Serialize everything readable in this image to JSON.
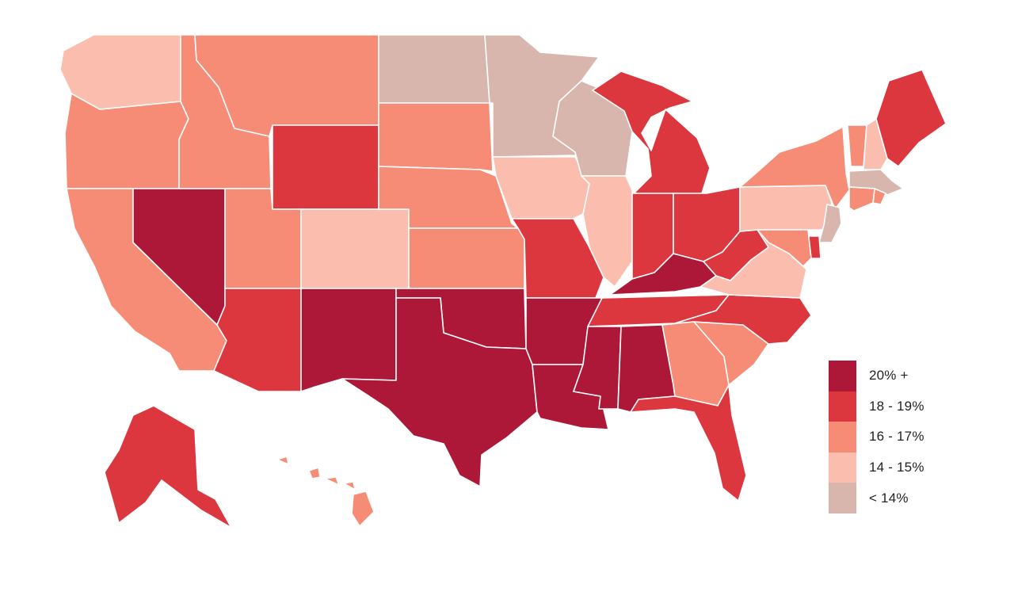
{
  "map": {
    "type": "choropleth",
    "region": "United States",
    "legend_placement": "bottom-right",
    "scale": [
      {
        "key": "c20plus",
        "label": "20% +",
        "color": "#ad1838"
      },
      {
        "key": "c18_19",
        "label": "18 - 19%",
        "color": "#dc373e"
      },
      {
        "key": "c16_17",
        "label": "16 - 17%",
        "color": "#f68c75"
      },
      {
        "key": "c14_15",
        "label": "14 - 15%",
        "color": "#fbbdad"
      },
      {
        "key": "clt14",
        "label": "< 14%",
        "color": "#d8b6ad"
      }
    ],
    "states": {
      "WA": "c14_15",
      "OR": "c16_17",
      "CA": "c16_17",
      "NV": "c20plus",
      "ID": "c16_17",
      "MT": "c16_17",
      "WY": "c18_19",
      "UT": "c16_17",
      "CO": "c14_15",
      "AZ": "c18_19",
      "NM": "c20plus",
      "ND": "clt14",
      "SD": "c16_17",
      "NE": "c16_17",
      "KS": "c16_17",
      "OK": "c20plus",
      "TX": "c20plus",
      "MN": "clt14",
      "IA": "c14_15",
      "MO": "c18_19",
      "AR": "c20plus",
      "LA": "c20plus",
      "WI": "clt14",
      "IL": "c14_15",
      "MI": "c18_19",
      "IN": "c18_19",
      "OH": "c18_19",
      "KY": "c20plus",
      "TN": "c18_19",
      "MS": "c20plus",
      "AL": "c20plus",
      "GA": "c16_17",
      "FL": "c18_19",
      "SC": "c16_17",
      "NC": "c18_19",
      "VA": "c14_15",
      "WV": "c18_19",
      "PA": "c14_15",
      "NY": "c16_17",
      "VT": "c16_17",
      "NH": "c14_15",
      "ME": "c18_19",
      "MA": "clt14",
      "RI": "c16_17",
      "CT": "c16_17",
      "NJ": "clt14",
      "DE": "c18_19",
      "MD": "c16_17",
      "AK": "c18_19",
      "HI": "c16_17"
    }
  }
}
